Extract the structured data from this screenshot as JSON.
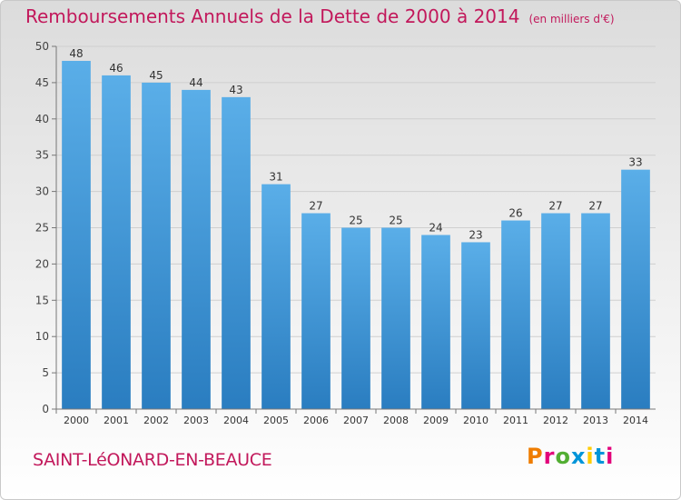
{
  "title": "Remboursements Annuels de la Dette de 2000 à 2014",
  "subtitle": "(en milliers d'€)",
  "city": "SAINT-LéONARD-EN-BEAUCE",
  "logo": {
    "letters": [
      "P",
      "r",
      "o",
      "x",
      "i",
      "t",
      "i"
    ],
    "colors": [
      "#ef7d00",
      "#e2007a",
      "#52ae32",
      "#0095d9",
      "#ffcc00",
      "#0095d9",
      "#e2007a"
    ]
  },
  "colors": {
    "bar_light": "#5aaee8",
    "bar_dark": "#2a7dc0",
    "title": "#c2185b"
  },
  "chart_data": {
    "type": "bar",
    "categories": [
      "2000",
      "2001",
      "2002",
      "2003",
      "2004",
      "2005",
      "2006",
      "2007",
      "2008",
      "2009",
      "2010",
      "2011",
      "2012",
      "2013",
      "2014"
    ],
    "values": [
      48,
      46,
      45,
      44,
      43,
      31,
      27,
      25,
      25,
      24,
      23,
      26,
      27,
      27,
      33
    ],
    "ylim": [
      0,
      50
    ],
    "yticks": [
      0,
      5,
      10,
      15,
      20,
      25,
      30,
      35,
      40,
      45,
      50
    ],
    "grid": true
  }
}
